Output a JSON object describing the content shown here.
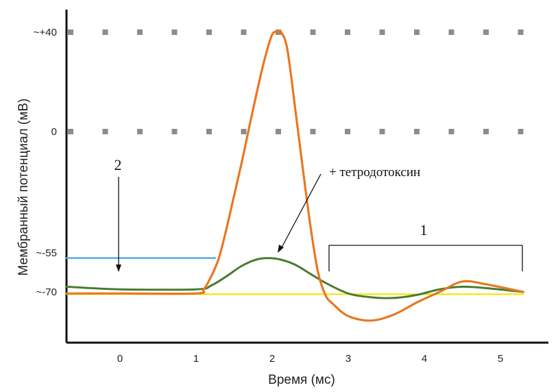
{
  "chart_data": {
    "type": "line",
    "xlabel": "Время (мс)",
    "ylabel": "Мембранный потенциал (мВ)",
    "x_ticks": [
      "0",
      "1",
      "2",
      "3",
      "4",
      "5"
    ],
    "y_ticks": [
      {
        "label": "~+40",
        "value": 40
      },
      {
        "label": "0",
        "value": 0
      },
      {
        "label": "~-55",
        "value": -55
      },
      {
        "label": "~-70",
        "value": -70
      }
    ],
    "xlim": [
      -0.7,
      5.3
    ],
    "grid": "dotted lines at 0 and +40 mV",
    "series": [
      {
        "color": "#e87722",
        "x": [
          -0.7,
          0,
          1.0,
          1.1,
          1.2,
          1.3,
          1.4,
          1.5,
          1.6,
          1.7,
          1.8,
          1.9,
          2.0,
          2.07,
          2.12,
          2.2,
          2.3,
          2.4,
          2.5,
          2.6,
          2.7,
          2.8,
          3.0,
          3.3,
          3.6,
          3.9,
          4.2,
          4.5,
          4.8,
          5.3
        ],
        "y": [
          -71,
          -71,
          -71,
          -69,
          -64,
          -57,
          -44,
          -29,
          -14,
          2,
          16,
          29,
          39,
          40,
          40,
          33,
          10,
          -16,
          -42,
          -62,
          -72,
          -78,
          -86,
          -89,
          -85,
          -77,
          -70,
          -66,
          -67,
          -70
        ]
      },
      {
        "color": "#4a7c2f",
        "x": [
          -0.7,
          0,
          1.0,
          1.2,
          1.4,
          1.6,
          1.8,
          1.95,
          2.1,
          2.3,
          2.5,
          2.7,
          3.0,
          3.3,
          3.6,
          3.9,
          4.2,
          4.5,
          4.8,
          5.3
        ],
        "y": [
          -68,
          -69,
          -69,
          -67.5,
          -64,
          -60,
          -57.5,
          -57,
          -57.5,
          -59.5,
          -63,
          -66.5,
          -71,
          -73.5,
          -74,
          -72,
          -69,
          -68,
          -68.5,
          -70
        ]
      },
      {
        "color": "#f2e600",
        "x": [
          -0.7,
          5.3
        ],
        "y": [
          -71.5,
          -71.5
        ]
      },
      {
        "color": "#5aaee6",
        "x": [
          -0.7,
          1.25
        ],
        "y": [
          -57,
          -57
        ]
      }
    ],
    "annotations": [
      {
        "text": "2",
        "note": "arrow down to resting potential"
      },
      {
        "text": "+ тетродотоксин",
        "note": "arrow to green curve peak"
      },
      {
        "text": "1",
        "note": "bracket over afterpotential oscillation"
      }
    ]
  }
}
